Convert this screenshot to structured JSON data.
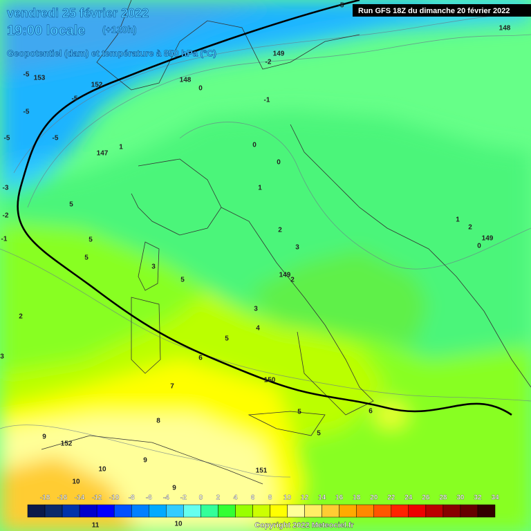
{
  "header": {
    "date": "vendredi 25 février 2022",
    "time": "19:00 locale",
    "lead": "(+120h)",
    "subtitle": "Geopotentiel (dam) et température à 850 hPa (°C)",
    "run": "Run GFS 18Z du dimanche 20 février 2022"
  },
  "map_labels": [
    153,
    152,
    148,
    149,
    148,
    147,
    149,
    150,
    151,
    152,
    149,
    -5,
    -5,
    -5,
    -5,
    -5,
    -5,
    -2,
    0,
    -1,
    1,
    0,
    0,
    1,
    2,
    3,
    2,
    5,
    5,
    5,
    3,
    5,
    3,
    4,
    5,
    6,
    7,
    8,
    9,
    9,
    10,
    10,
    9,
    2,
    3,
    -2,
    -3,
    -1,
    5,
    5,
    6,
    1,
    2,
    0,
    11,
    10
  ],
  "colorbar": {
    "ticks": [
      -18,
      -16,
      -14,
      -12,
      -10,
      -8,
      -6,
      -4,
      -2,
      0,
      2,
      4,
      6,
      8,
      10,
      12,
      14,
      16,
      18,
      20,
      22,
      24,
      26,
      28,
      30,
      32,
      34
    ],
    "colors": [
      "#0a1a4a",
      "#0a2a6a",
      "#0033aa",
      "#0000cc",
      "#0000ff",
      "#0050ff",
      "#0080ff",
      "#00aaff",
      "#33ccff",
      "#66ffee",
      "#33ff99",
      "#33ff33",
      "#99ff00",
      "#ccff00",
      "#ffff00",
      "#ffff99",
      "#ffee66",
      "#ffcc33",
      "#ffaa00",
      "#ff8800",
      "#ff5500",
      "#ff2200",
      "#ee0000",
      "#bb0000",
      "#880000",
      "#660000",
      "#330000"
    ]
  },
  "footer": {
    "copyright": "Copyright 2022 Meteociel.fr"
  }
}
